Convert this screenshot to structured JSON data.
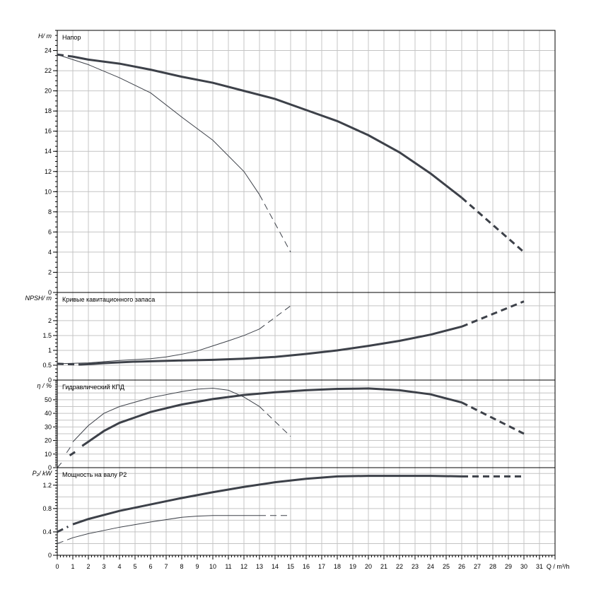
{
  "chart_data": {
    "type": "line",
    "xlabel": "Q / m³/h",
    "xlim": [
      0,
      32
    ],
    "xticks": [
      0,
      1,
      2,
      3,
      4,
      5,
      6,
      7,
      8,
      9,
      10,
      11,
      12,
      13,
      14,
      15,
      16,
      17,
      18,
      19,
      20,
      21,
      22,
      23,
      24,
      25,
      26,
      27,
      28,
      29,
      30,
      31
    ],
    "grid": true,
    "panels": [
      {
        "id": "head",
        "title": "Напор",
        "ylabel": "H/ m",
        "ylim": [
          0,
          26
        ],
        "yticks": [
          0,
          2,
          4,
          6,
          8,
          10,
          12,
          14,
          16,
          18,
          20,
          22,
          24
        ],
        "ygrid": 2,
        "series": [
          {
            "name": "thick",
            "solid": [
              [
                1,
                23.4
              ],
              [
                2,
                23.1
              ],
              [
                4,
                22.7
              ],
              [
                6,
                22.1
              ],
              [
                8,
                21.4
              ],
              [
                10,
                20.8
              ],
              [
                12,
                20.0
              ],
              [
                14,
                19.2
              ],
              [
                16,
                18.1
              ],
              [
                18,
                17.0
              ],
              [
                20,
                15.6
              ],
              [
                22,
                13.9
              ],
              [
                24,
                11.8
              ],
              [
                26,
                9.4
              ]
            ],
            "dashed": [
              [
                0,
                23.6
              ],
              [
                1,
                23.4
              ],
              [
                26,
                9.4
              ],
              [
                30,
                4.0
              ]
            ]
          },
          {
            "name": "thin",
            "solid": [
              [
                0,
                23.6
              ],
              [
                2,
                22.6
              ],
              [
                4,
                21.3
              ],
              [
                6,
                19.8
              ],
              [
                8,
                17.4
              ],
              [
                10,
                15.1
              ],
              [
                12,
                12.0
              ],
              [
                13,
                9.7
              ]
            ],
            "dashed": [
              [
                13,
                9.7
              ],
              [
                15,
                4.0
              ]
            ]
          }
        ]
      },
      {
        "id": "npsh",
        "title": "Кривые кавитационного запаса",
        "ylabel": "NPSH/ m",
        "ylim": [
          0,
          2.95
        ],
        "yticks": [
          0,
          0.5,
          1,
          1.5,
          2
        ],
        "ygrid": 0.5,
        "series": [
          {
            "name": "thick",
            "solid": [
              [
                1.5,
                0.52
              ],
              [
                3,
                0.57
              ],
              [
                5,
                0.62
              ],
              [
                8,
                0.66
              ],
              [
                10,
                0.68
              ],
              [
                12,
                0.72
              ],
              [
                14,
                0.78
              ],
              [
                16,
                0.88
              ],
              [
                18,
                1.0
              ],
              [
                20,
                1.15
              ],
              [
                22,
                1.32
              ],
              [
                24,
                1.53
              ],
              [
                26,
                1.8
              ]
            ],
            "dashed": [
              [
                0,
                0.55
              ],
              [
                1.5,
                0.52
              ],
              [
                26,
                1.8
              ],
              [
                30,
                2.65
              ]
            ]
          },
          {
            "name": "thin",
            "solid": [
              [
                0,
                0.55
              ],
              [
                2,
                0.58
              ],
              [
                4,
                0.66
              ],
              [
                6,
                0.72
              ],
              [
                7,
                0.78
              ],
              [
                8,
                0.87
              ],
              [
                9,
                0.98
              ],
              [
                10,
                1.15
              ],
              [
                11,
                1.32
              ],
              [
                12,
                1.5
              ],
              [
                13,
                1.72
              ]
            ],
            "dashed": [
              [
                13,
                1.72
              ],
              [
                15,
                2.5
              ]
            ]
          }
        ]
      },
      {
        "id": "eta",
        "title": "Гидравлический КПД",
        "ylabel": "η / %",
        "ylim": [
          0,
          64.5
        ],
        "yticks": [
          0,
          10,
          20,
          30,
          40,
          50
        ],
        "ygrid": 5,
        "series": [
          {
            "name": "thick",
            "solid": [
              [
                1.6,
                16
              ],
              [
                3,
                27
              ],
              [
                4,
                33
              ],
              [
                5,
                37
              ],
              [
                6,
                41
              ],
              [
                8,
                46.5
              ],
              [
                10,
                50.5
              ],
              [
                12,
                53.5
              ],
              [
                14,
                55.5
              ],
              [
                16,
                57
              ],
              [
                18,
                58
              ],
              [
                20,
                58.3
              ],
              [
                22,
                57
              ],
              [
                24,
                54
              ],
              [
                26,
                48
              ]
            ],
            "dashed": [
              [
                0.8,
                9
              ],
              [
                1.2,
                12
              ],
              [
                26,
                48
              ],
              [
                30,
                25
              ]
            ]
          },
          {
            "name": "thin",
            "solid": [
              [
                1,
                19
              ],
              [
                2,
                31
              ],
              [
                3,
                40
              ],
              [
                4,
                45
              ],
              [
                6,
                51.5
              ],
              [
                8,
                56
              ],
              [
                9,
                57.8
              ],
              [
                10,
                58.5
              ],
              [
                11,
                57
              ],
              [
                12,
                52
              ],
              [
                13,
                45
              ]
            ],
            "dashed": [
              [
                0,
                0
              ],
              [
                0.3,
                4
              ],
              [
                0.6,
                11
              ],
              [
                0.9,
                16
              ],
              [
                13,
                45
              ],
              [
                15,
                23
              ]
            ]
          }
        ]
      },
      {
        "id": "p2",
        "title": "Мощность на валу P2",
        "ylabel": "P₂/ kW",
        "ylim": [
          0,
          1.5
        ],
        "yticks": [
          0,
          0.4,
          0.8,
          1.2
        ],
        "ygrid": 0.2,
        "series": [
          {
            "name": "thick",
            "solid": [
              [
                1,
                0.53
              ],
              [
                2,
                0.62
              ],
              [
                4,
                0.76
              ],
              [
                6,
                0.87
              ],
              [
                8,
                0.98
              ],
              [
                10,
                1.08
              ],
              [
                12,
                1.17
              ],
              [
                14,
                1.25
              ],
              [
                16,
                1.31
              ],
              [
                18,
                1.35
              ],
              [
                20,
                1.36
              ],
              [
                24,
                1.36
              ],
              [
                26,
                1.35
              ]
            ],
            "dashed": [
              [
                0,
                0.4
              ],
              [
                0.7,
                0.49
              ],
              [
                26,
                1.35
              ],
              [
                30,
                1.35
              ]
            ]
          },
          {
            "name": "thin",
            "solid": [
              [
                0.7,
                0.27
              ],
              [
                1,
                0.3
              ],
              [
                2,
                0.37
              ],
              [
                4,
                0.48
              ],
              [
                6,
                0.57
              ],
              [
                8,
                0.65
              ],
              [
                9,
                0.67
              ],
              [
                10,
                0.68
              ],
              [
                13,
                0.68
              ]
            ],
            "dashed": [
              [
                0,
                0.2
              ],
              [
                0.7,
                0.27
              ],
              [
                13,
                0.68
              ],
              [
                15,
                0.68
              ]
            ]
          }
        ]
      }
    ]
  }
}
